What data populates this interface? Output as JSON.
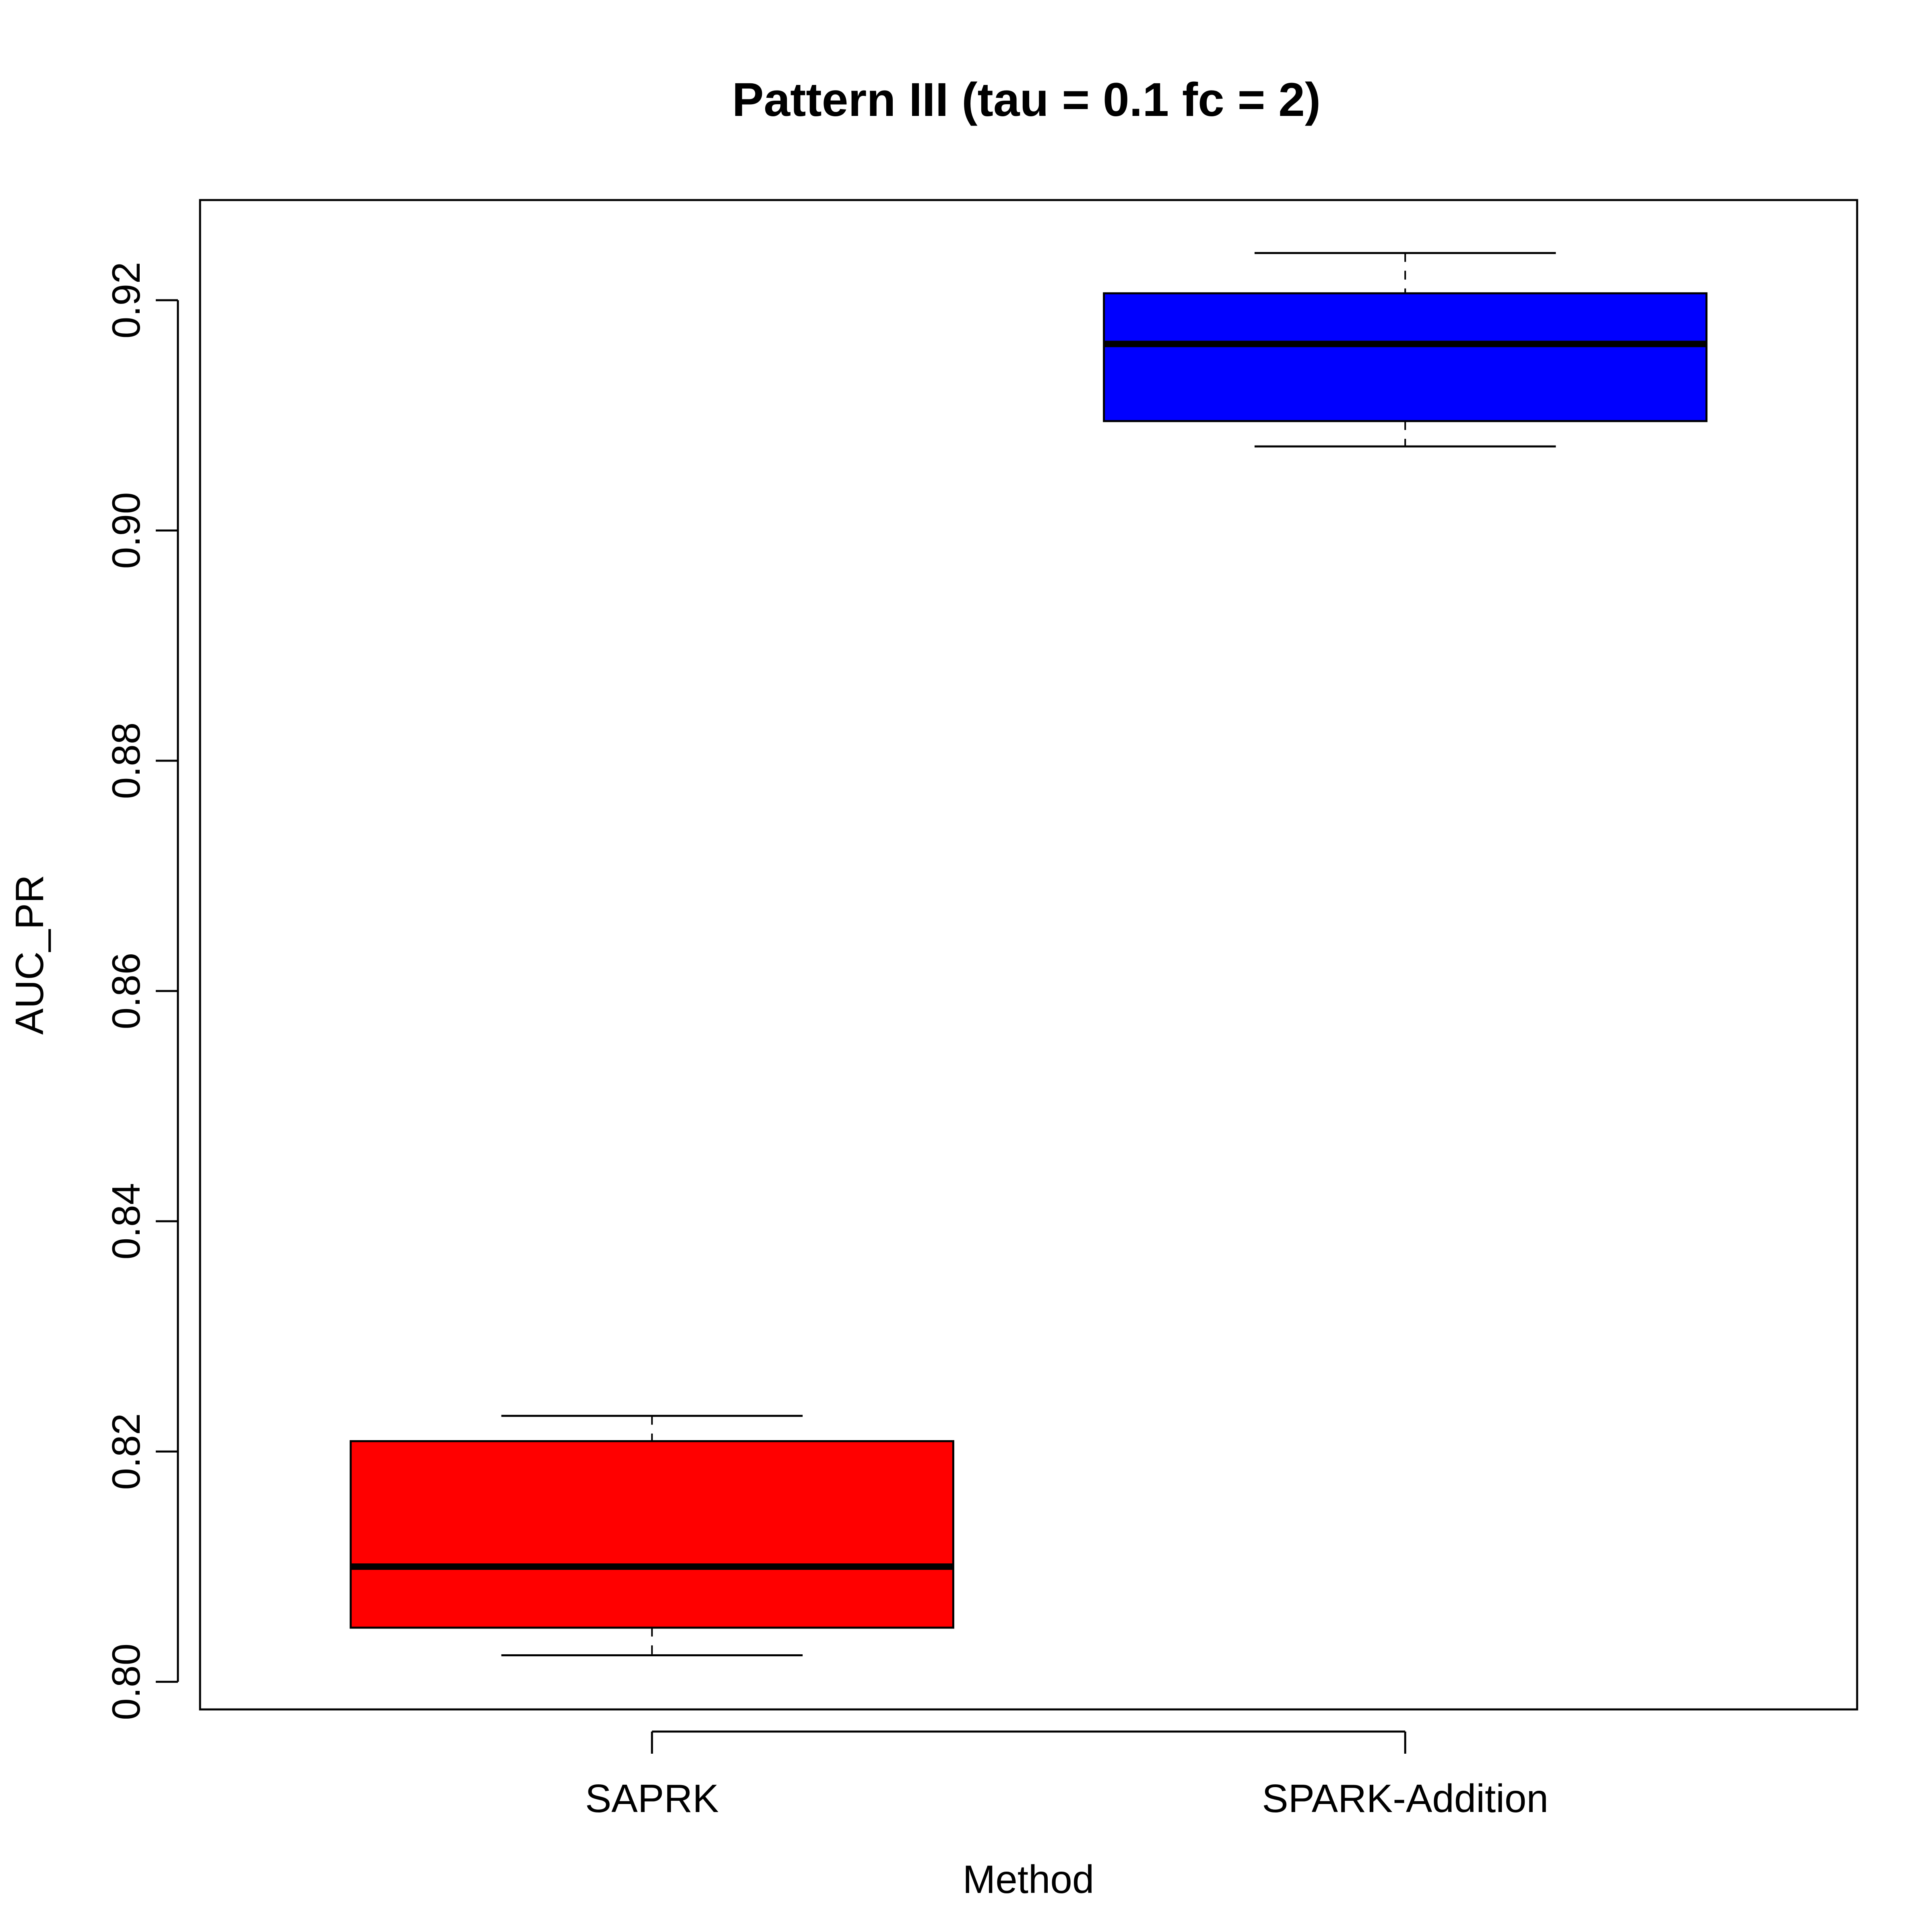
{
  "chart_data": {
    "type": "boxplot",
    "title": "Pattern III (tau = 0.1 fc = 2)",
    "xlabel": "Method",
    "ylabel": "AUC_PR",
    "categories": [
      "SAPRK",
      "SPARK-Addition"
    ],
    "ylim": [
      0.7976,
      0.9287
    ],
    "yticks": [
      0.8,
      0.82,
      0.84,
      0.86,
      0.88,
      0.9,
      0.92
    ],
    "ytick_labels": [
      "0.80",
      "0.82",
      "0.84",
      "0.86",
      "0.88",
      "0.90",
      "0.92"
    ],
    "grid": false,
    "legend": "none",
    "boxes": [
      {
        "category": "SAPRK",
        "whisker_low": 0.8023,
        "q1": 0.8047,
        "median": 0.81,
        "q3": 0.8209,
        "whisker_high": 0.8231,
        "color": "#ff0000"
      },
      {
        "category": "SPARK-Addition",
        "whisker_low": 0.9073,
        "q1": 0.9095,
        "median": 0.9162,
        "q3": 0.9206,
        "whisker_high": 0.9241,
        "color": "#0000ff"
      }
    ]
  }
}
